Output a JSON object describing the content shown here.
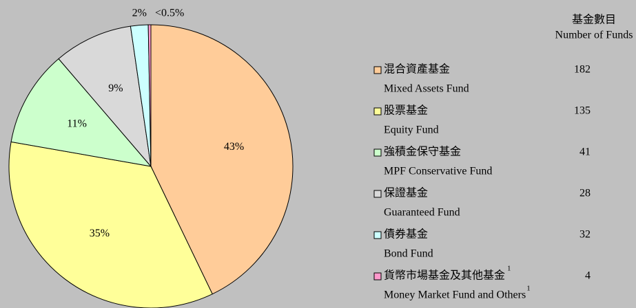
{
  "chart_data": {
    "type": "pie",
    "categories": [
      "混合資產基金",
      "股票基金",
      "強積金保守基金",
      "保證基金",
      "債券基金",
      "貨幣市場基金及其他基金"
    ],
    "categories_en": [
      "Mixed Assets Fund",
      "Equity Fund",
      "MPF Conservative Fund",
      "Guaranteed Fund",
      "Bond Fund",
      "Money Market Fund and Others"
    ],
    "values": [
      43,
      35,
      11,
      9,
      2,
      0.3
    ],
    "value_labels": [
      "43%",
      "35%",
      "11%",
      "9%",
      "2%",
      "<0.5%"
    ],
    "colors": [
      "#ffcc99",
      "#ffff99",
      "#ccffcc",
      "#d9d9d9",
      "#ccffff",
      "#ff99cc"
    ],
    "legend_title": "基金數目",
    "legend_title_en": "Number of Funds",
    "counts": [
      182,
      135,
      41,
      28,
      32,
      4
    ],
    "footnote_mark": "1",
    "footnote_rows": [
      5
    ]
  }
}
